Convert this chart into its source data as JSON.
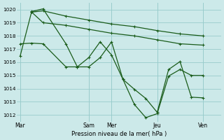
{
  "background_color": "#cce9e9",
  "grid_color": "#99cccc",
  "line_color": "#1a5c1a",
  "xlabel": "Pression niveau de la mer( hPa )",
  "ylim": [
    1011.5,
    1020.5
  ],
  "yticks": [
    1012,
    1013,
    1014,
    1015,
    1016,
    1017,
    1018,
    1019,
    1020
  ],
  "xtick_labels": [
    "Mar",
    "Sam",
    "Mer",
    "Jeu",
    "Ven"
  ],
  "xtick_positions": [
    0,
    3,
    4,
    6,
    8
  ],
  "xlim": [
    -0.15,
    8.8
  ],
  "series": [
    {
      "x": [
        0.5,
        1.0,
        2.0,
        3.0,
        4.0,
        5.0,
        6.0,
        7.0,
        8.0
      ],
      "y": [
        1019.8,
        1019.9,
        1019.5,
        1019.2,
        1018.9,
        1018.7,
        1018.4,
        1018.15,
        1018.0
      ]
    },
    {
      "x": [
        0.5,
        1.0,
        2.0,
        3.0,
        4.0,
        5.0,
        6.0,
        7.0,
        8.0
      ],
      "y": [
        1019.8,
        1019.0,
        1018.8,
        1018.5,
        1018.2,
        1018.0,
        1017.7,
        1017.4,
        1017.3
      ]
    },
    {
      "x": [
        0.0,
        0.5,
        1.0,
        2.0,
        2.5,
        3.0,
        3.5,
        4.0,
        4.5,
        5.0,
        5.5,
        6.0,
        6.5,
        7.0,
        7.5,
        8.0
      ],
      "y": [
        1017.4,
        1017.45,
        1017.4,
        1015.65,
        1015.65,
        1016.35,
        1017.55,
        1016.55,
        1014.7,
        1013.95,
        1013.25,
        1012.2,
        1015.45,
        1016.05,
        1013.35,
        1013.3
      ]
    },
    {
      "x": [
        0.0,
        0.5,
        1.0,
        2.0,
        2.5,
        3.0,
        3.5,
        4.0,
        4.5,
        5.0,
        5.5,
        6.0,
        6.5,
        7.0,
        7.5,
        8.0
      ],
      "y": [
        1016.5,
        1019.85,
        1020.05,
        1017.4,
        1015.65,
        1015.65,
        1016.35,
        1017.55,
        1014.7,
        1012.8,
        1011.8,
        1012.1,
        1014.95,
        1015.45,
        1015.0,
        1015.0
      ]
    }
  ]
}
